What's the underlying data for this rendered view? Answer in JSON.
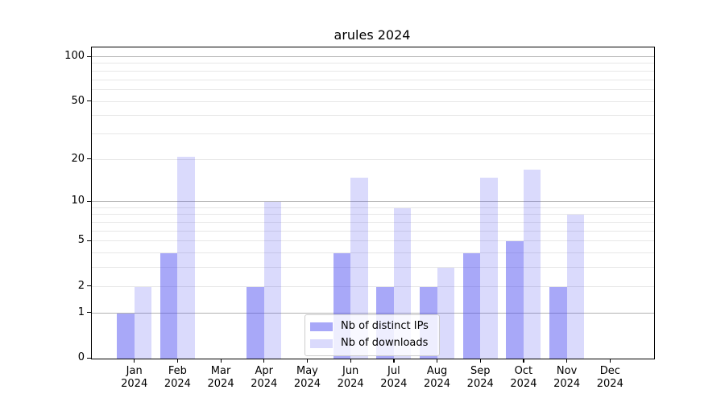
{
  "title": "arules 2024",
  "chart_data": {
    "type": "bar",
    "title": "arules 2024",
    "categories": [
      "Jan 2024",
      "Feb 2024",
      "Mar 2024",
      "Apr 2024",
      "May 2024",
      "Jun 2024",
      "Jul 2024",
      "Aug 2024",
      "Sep 2024",
      "Oct 2024",
      "Nov 2024",
      "Dec 2024"
    ],
    "series": [
      {
        "name": "Nb of distinct IPs",
        "color": "rgba(70,70,240,0.47)",
        "values": [
          1,
          4,
          0,
          2,
          0,
          4,
          2,
          2,
          4,
          5,
          2,
          0
        ]
      },
      {
        "name": "Nb of downloads",
        "color": "rgba(70,70,240,0.20)",
        "values": [
          2,
          21,
          0,
          10,
          0,
          15,
          9,
          3,
          15,
          17,
          8,
          0
        ]
      }
    ],
    "xlabel": "",
    "ylabel": "",
    "yscale": "log1p",
    "ylim": [
      0,
      116
    ],
    "ytick_labels": [
      100,
      50,
      20,
      10,
      5,
      2,
      1,
      0
    ],
    "gridlines_major": [
      1,
      10,
      100
    ],
    "gridlines_minor": [
      2,
      3,
      4,
      5,
      6,
      7,
      8,
      9,
      20,
      30,
      40,
      50,
      60,
      70,
      80,
      90
    ],
    "grid": true,
    "legend_position": "inside-bottom-center"
  },
  "colors": {
    "series_distinct_ips": "rgba(70,70,240,0.47)",
    "series_downloads": "rgba(70,70,240,0.20)",
    "grid_major": "#b3b3b3",
    "grid_minor": "#e7e7e7",
    "spine": "#000000",
    "text": "#000000",
    "legend_border": "#cccccc",
    "background": "#ffffff"
  }
}
